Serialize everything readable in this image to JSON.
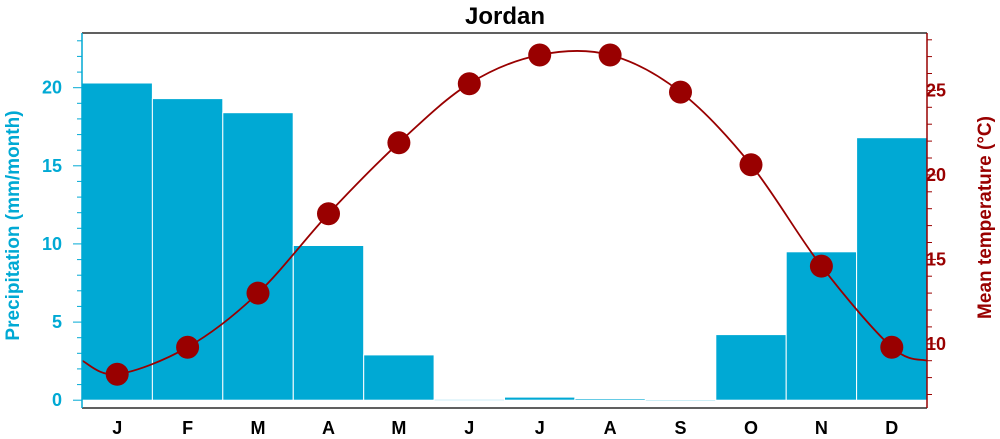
{
  "chart_data": {
    "type": "bar+line",
    "title": "Jordan",
    "categories": [
      "J",
      "F",
      "M",
      "A",
      "M",
      "J",
      "J",
      "A",
      "S",
      "O",
      "N",
      "D"
    ],
    "left_axis": {
      "label": "Precipitation (mm/month)",
      "color": "#00a9d4",
      "ylim": [
        -0.5,
        23.5
      ],
      "ticks": [
        0,
        5,
        10,
        15,
        20
      ],
      "tick_labels": [
        "0",
        "5",
        "10",
        "15",
        "20"
      ]
    },
    "right_axis": {
      "label": "Mean temperature (°C)",
      "color": "#990000",
      "ylim": [
        6.2,
        28.4
      ],
      "ticks": [
        10,
        15,
        20,
        25
      ],
      "tick_labels": [
        "10",
        "15",
        "20",
        "25"
      ]
    },
    "series": [
      {
        "name": "Precipitation",
        "kind": "bar",
        "axis": "left",
        "color": "#00a9d4",
        "values": [
          20.3,
          19.3,
          18.4,
          9.9,
          2.9,
          0.05,
          0.2,
          0.1,
          0,
          4.2,
          9.5,
          16.8
        ]
      },
      {
        "name": "Mean temperature",
        "kind": "line",
        "axis": "right",
        "color": "#990000",
        "values": [
          8.2,
          9.8,
          13.0,
          17.7,
          21.9,
          25.4,
          27.1,
          27.1,
          24.9,
          20.6,
          14.6,
          9.8
        ]
      }
    ],
    "grid": false,
    "legend": "none"
  }
}
